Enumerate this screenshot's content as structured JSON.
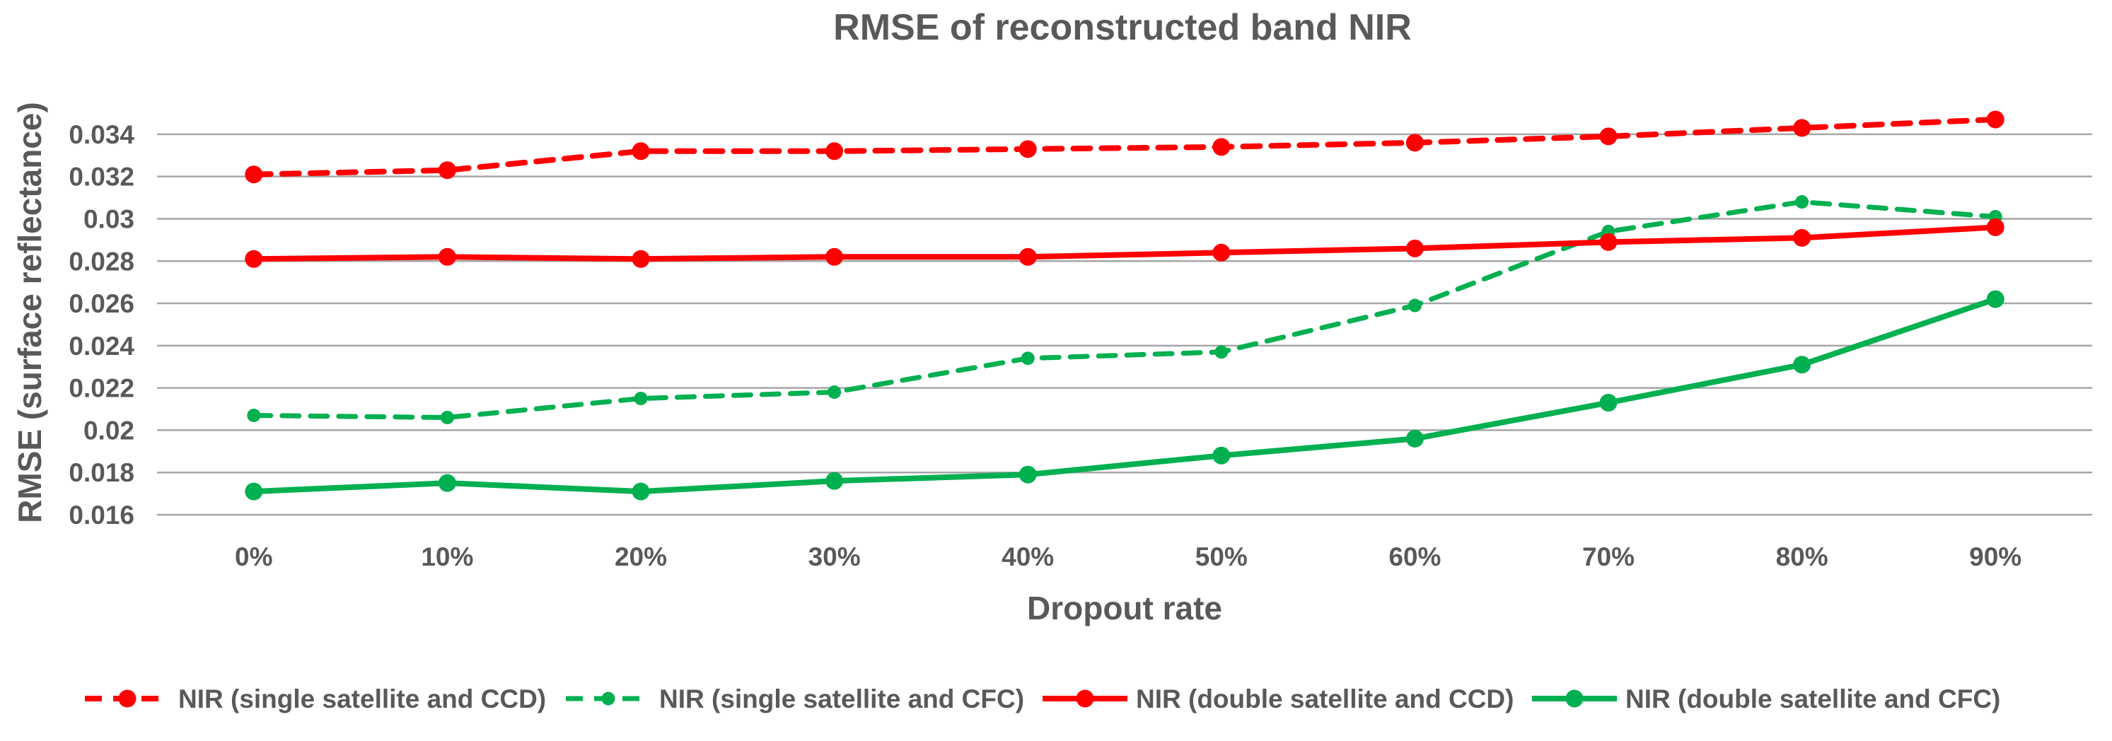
{
  "chart_data": {
    "type": "line",
    "title": "RMSE of reconstructed band NIR",
    "xlabel": "Dropout rate",
    "ylabel": "RMSE (surface reflectance)",
    "categories": [
      "0%",
      "10%",
      "20%",
      "30%",
      "40%",
      "50%",
      "60%",
      "70%",
      "80%",
      "90%"
    ],
    "ylim": [
      0.016,
      0.035
    ],
    "yticks": [
      0.016,
      0.018,
      0.02,
      0.022,
      0.024,
      0.026,
      0.028,
      0.03,
      0.032,
      0.034
    ],
    "ytick_labels": [
      "0.016",
      "0.018",
      "0.02",
      "0.022",
      "0.024",
      "0.026",
      "0.028",
      "0.03",
      "0.032",
      "0.034"
    ],
    "grid": true,
    "legend_position": "bottom",
    "series": [
      {
        "name": "NIR (single satellite and CCD)",
        "color": "#ff0000",
        "dashed": true,
        "marker": "large",
        "values": [
          0.0321,
          0.0323,
          0.0332,
          0.0332,
          0.0333,
          0.0334,
          0.0336,
          0.0339,
          0.0343,
          0.0347
        ]
      },
      {
        "name": "NIR (single satellite and CFC)",
        "color": "#00b050",
        "dashed": true,
        "marker": "small",
        "values": [
          0.0207,
          0.0206,
          0.0215,
          0.0218,
          0.0234,
          0.0237,
          0.0259,
          0.0294,
          0.0308,
          0.0301
        ]
      },
      {
        "name": "NIR (double satellite and CCD)",
        "color": "#ff0000",
        "dashed": false,
        "marker": "large",
        "values": [
          0.0281,
          0.0282,
          0.0281,
          0.0282,
          0.0282,
          0.0284,
          0.0286,
          0.0289,
          0.0291,
          0.0296
        ]
      },
      {
        "name": "NIR (double satellite and CFC)",
        "color": "#00b050",
        "dashed": false,
        "marker": "large",
        "values": [
          0.0171,
          0.0175,
          0.0171,
          0.0176,
          0.0179,
          0.0188,
          0.0196,
          0.0213,
          0.0231,
          0.0262
        ]
      }
    ]
  }
}
